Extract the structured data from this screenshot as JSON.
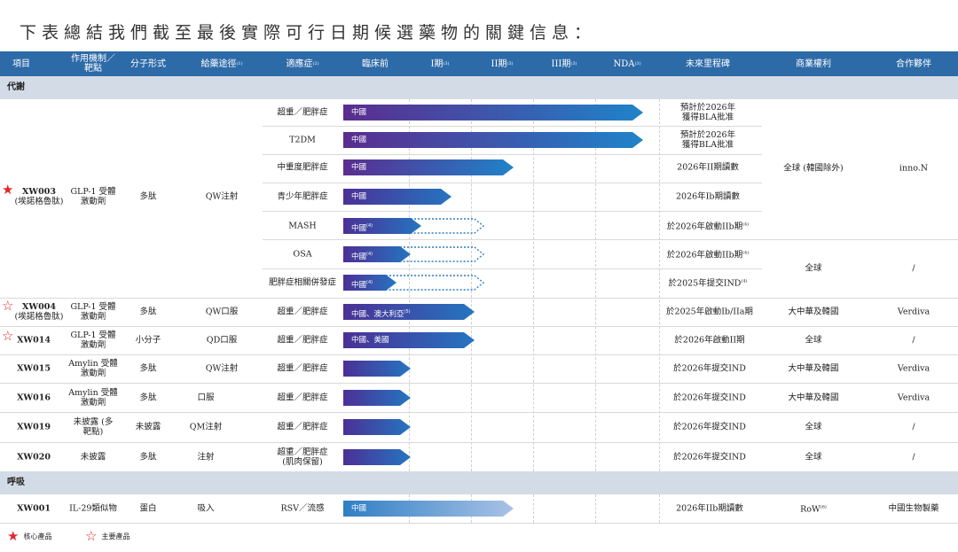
{
  "title": "下表總結我們截至最後實際可行日期候選藥物的關鍵信息：",
  "headers": {
    "project": "項目",
    "mechanism": "作用機制／靶點",
    "modality": "分子形式",
    "route": "給藥途徑",
    "route_note": "(1)",
    "indication": "適應症",
    "indication_note": "(2)",
    "preclinical": "臨床前",
    "phase1": "I期",
    "phase1_note": "(3)",
    "phase2": "II期",
    "phase2_note": "(3)",
    "phase3": "III期",
    "phase3_note": "(3)",
    "nda": "NDA",
    "nda_note": "(3)",
    "milestone": "未來里程碑",
    "rights": "商業權利",
    "partner": "合作夥伴"
  },
  "sections": {
    "metabolism": "代謝",
    "respiratory": "呼吸"
  },
  "xw003": {
    "code": "XW003",
    "alias": "(埃諾格魯肽)",
    "mechanism": "GLP-1 受體激動劑",
    "modality": "多肽",
    "route": "QW注射",
    "rights_a": "全球 (韓國除外)",
    "partner_a": "inno.N",
    "rights_b": "全球",
    "partner_b": "/",
    "rows": [
      {
        "indication": "超重／肥胖症",
        "bar": "中國",
        "milestone": "預計於2026年 獲得BLA批准"
      },
      {
        "indication": "T2DM",
        "bar": "中國",
        "milestone": "預計於2026年 獲得BLA批准"
      },
      {
        "indication": "中重度肥胖症",
        "bar": "中國",
        "milestone": "2026年II期讀數"
      },
      {
        "indication": "青少年肥胖症",
        "bar": "中國",
        "milestone": "2026年Ib期讀數"
      },
      {
        "indication": "MASH",
        "bar": "中國",
        "bar_note": "(4)",
        "milestone": "於2026年啟動IIb期",
        "milestone_note": "(4)"
      },
      {
        "indication": "OSA",
        "bar": "中國",
        "bar_note": "(4)",
        "milestone": "於2026年啟動IIb期",
        "milestone_note": "(4)"
      },
      {
        "indication": "肥胖症相關併發症",
        "bar": "中國",
        "bar_note": "(4)",
        "milestone": "於2025年提交IND",
        "milestone_note": "(4)"
      }
    ]
  },
  "others": [
    {
      "code": "XW004",
      "alias": "(埃諾格魯肽)",
      "mechanism": "GLP-1 受體激動劑",
      "modality": "多肽",
      "route": "QW口服",
      "indication": "超重／肥胖症",
      "bar": "中國、澳大利亞",
      "bar_note": "(5)",
      "milestone": "於2025年啟動Ib/IIa期",
      "rights": "大中華及韓國",
      "partner": "Verdiva"
    },
    {
      "code": "XW014",
      "alias": "",
      "mechanism": "GLP-1 受體激動劑",
      "modality": "小分子",
      "route": "QD口服",
      "indication": "超重／肥胖症",
      "bar": "中國、美國",
      "bar_note": "",
      "milestone": "於2026年啟動II期",
      "rights": "全球",
      "partner": "/"
    },
    {
      "code": "XW015",
      "alias": "",
      "mechanism": "Amylin 受體激動劑",
      "modality": "多肽",
      "route": "QW注射",
      "indication": "超重／肥胖症",
      "bar": "",
      "bar_note": "",
      "milestone": "於2026年提交IND",
      "rights": "大中華及韓國",
      "partner": "Verdiva"
    },
    {
      "code": "XW016",
      "alias": "",
      "mechanism": "Amylin 受體激動劑",
      "modality": "多肽",
      "route": "口服",
      "indication": "超重／肥胖症",
      "bar": "",
      "bar_note": "",
      "milestone": "於2026年提交IND",
      "rights": "大中華及韓國",
      "partner": "Verdiva"
    },
    {
      "code": "XW019",
      "alias": "",
      "mechanism": "未披露 (多靶點)",
      "modality": "未披露",
      "route": "QM注射",
      "indication": "超重／肥胖症",
      "bar": "",
      "bar_note": "",
      "milestone": "於2026年提交IND",
      "rights": "全球",
      "partner": "/"
    },
    {
      "code": "XW020",
      "alias": "",
      "mechanism": "未披露",
      "modality": "多肽",
      "route": "注射",
      "indication": "超重／肥胖症 (肌肉保留)",
      "bar": "",
      "bar_note": "",
      "milestone": "於2026年提交IND",
      "rights": "全球",
      "partner": "/"
    }
  ],
  "xw001": {
    "code": "XW001",
    "mechanism": "IL-29類似物",
    "modality": "蛋白",
    "route": "吸入",
    "indication": "RSV／流感",
    "bar": "中國",
    "milestone": "2026年IIb期讀數",
    "rights": "RoW",
    "rights_note": "(6)",
    "partner": "中國生物製藥"
  },
  "legend": {
    "core": "核心產品",
    "key": "主要產品"
  },
  "colors": {
    "header": "#2d6aa8",
    "section": "#d3dbe6",
    "bar_start": "#5b2c8f",
    "bar_end": "#1f83c9",
    "star": "#e0262b"
  }
}
